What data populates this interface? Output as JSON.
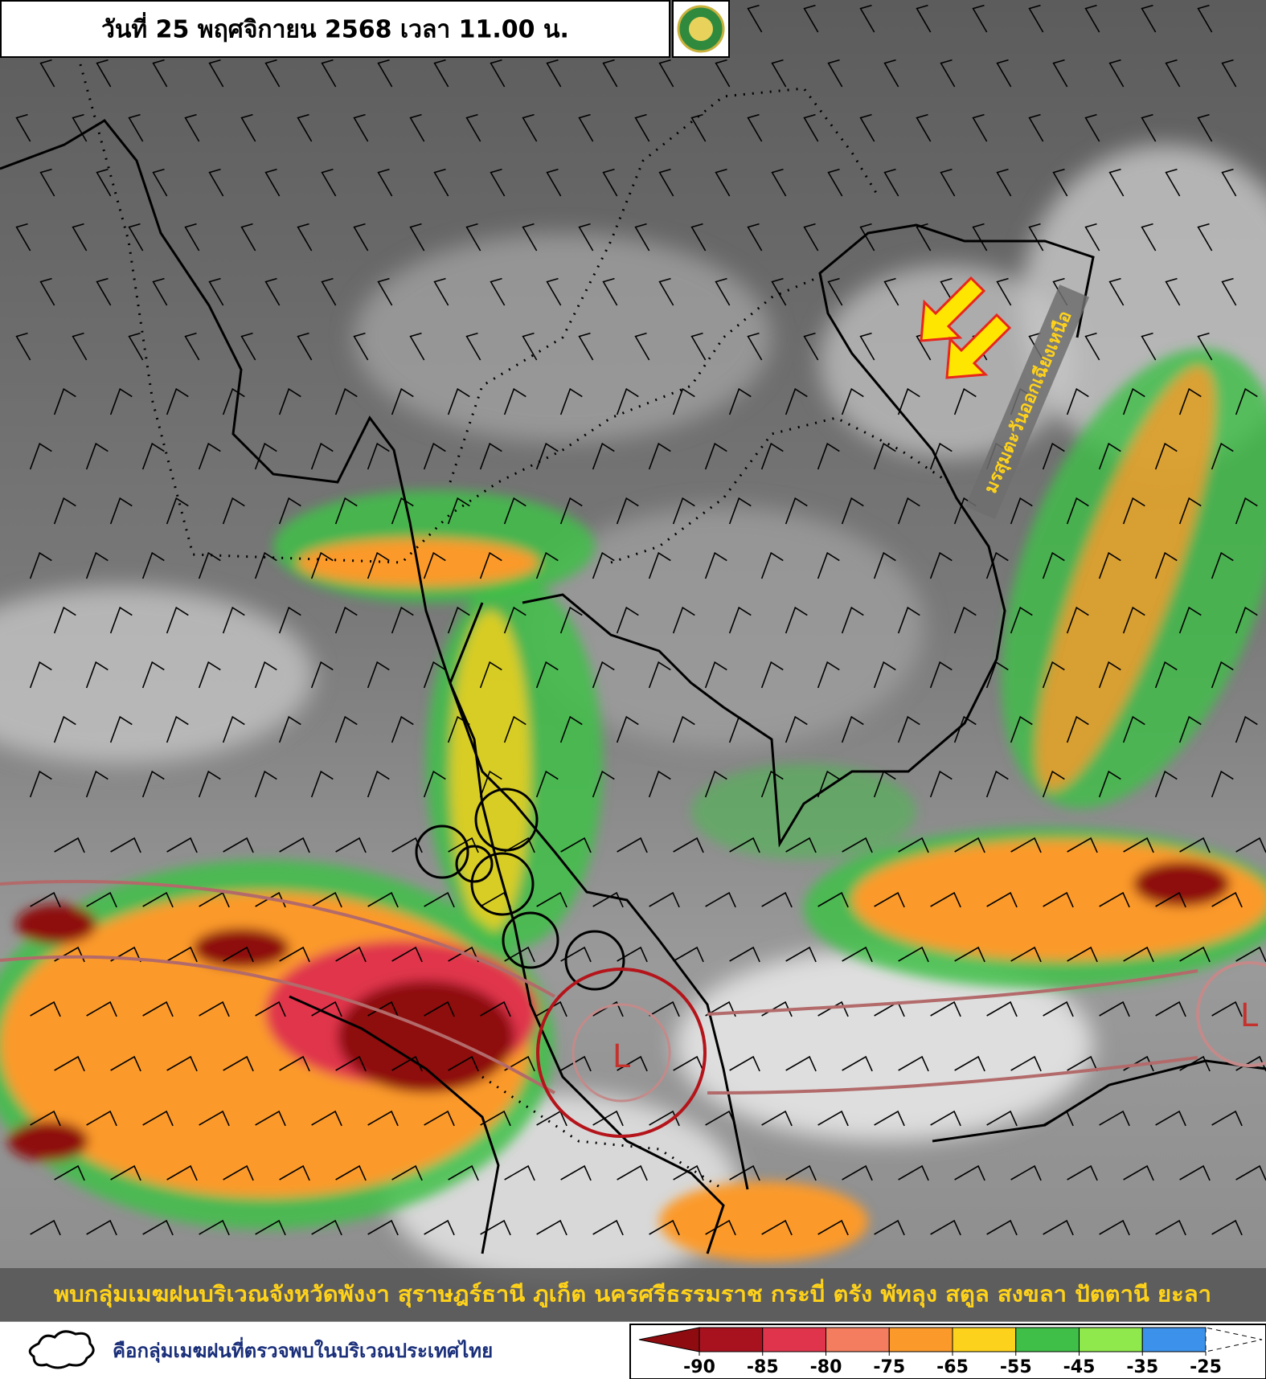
{
  "header": {
    "title": "วันที่ 25 พฤศจิกายน 2568 เวลา 11.00 น."
  },
  "map": {
    "monsoon_label": "มรสุมตะวันออกเฉียงเหนือ",
    "low_labels": [
      "L",
      "L"
    ]
  },
  "banner": "พบกลุ่มเมฆฝนบริเวณจังหวัดพังงา สุราษฎร์ธานี ภูเก็ต นครศรีธรรมราช กระบี่ ตรัง พัทลุง สตูล สงขลา ปัตตานี ยะลา",
  "legend": {
    "cloud_note": "คือกลุ่มเมฆฝนที่ตรวจพบในบริเวณประเทศไทย",
    "colorbar": {
      "ticks": [
        -90,
        -85,
        -80,
        -75,
        -65,
        -55,
        -45,
        -35,
        -25
      ],
      "colors": [
        "#8e0b10",
        "#a8121f",
        "#e0344c",
        "#f37d5e",
        "#fb9a2a",
        "#fdd21c",
        "#3fbf48",
        "#8fe84c",
        "#3c92ea",
        "#ffffff"
      ]
    }
  }
}
